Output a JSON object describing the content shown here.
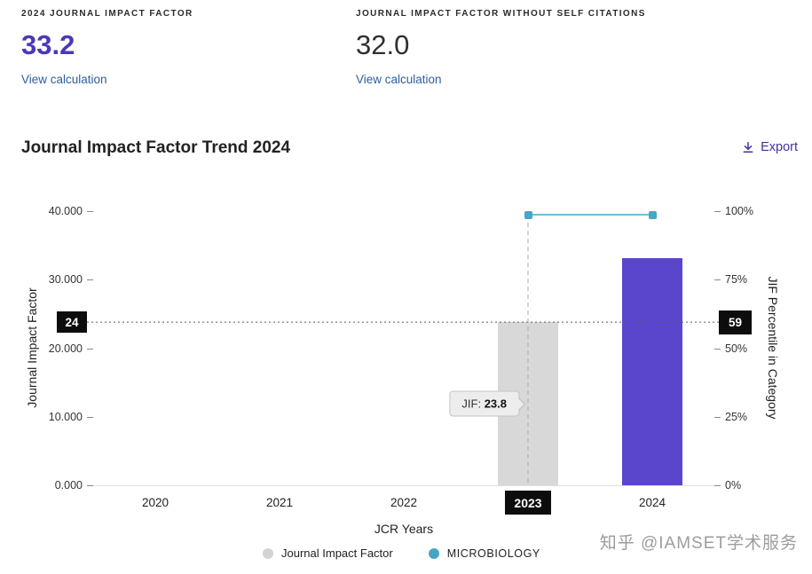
{
  "metrics": {
    "jif": {
      "label": "2024 JOURNAL IMPACT FACTOR",
      "value": "33.2",
      "link": "View calculation"
    },
    "jif_without_self": {
      "label": "JOURNAL IMPACT FACTOR WITHOUT SELF CITATIONS",
      "value": "32.0",
      "link": "View calculation"
    }
  },
  "trend": {
    "title": "Journal Impact Factor Trend 2024",
    "export_label": "Export"
  },
  "chart_data": {
    "type": "bar",
    "title": "Journal Impact Factor Trend 2024",
    "xlabel": "JCR Years",
    "ylabel_left": "Journal Impact Factor",
    "ylabel_right": "JIF Percentile in Category",
    "categories": [
      "2020",
      "2021",
      "2022",
      "2023",
      "2024"
    ],
    "ylim_left": [
      0,
      40
    ],
    "ylim_right": [
      0,
      100
    ],
    "y_left_ticks": [
      "40.000",
      "30.000",
      "20.000",
      "10.000",
      "0.000"
    ],
    "y_right_ticks": [
      "100%",
      "75%",
      "50%",
      "25%",
      "0%"
    ],
    "grid": false,
    "legend_position": "bottom",
    "series": [
      {
        "name": "Journal Impact Factor",
        "type": "bar",
        "axis": "left",
        "values": [
          null,
          null,
          null,
          23.8,
          33.2
        ],
        "colors": [
          null,
          null,
          null,
          "#d8d8d8",
          "#5a45cd"
        ]
      },
      {
        "name": "MICROBIOLOGY",
        "type": "line",
        "axis": "right",
        "values": [
          null,
          null,
          null,
          98.7,
          98.7
        ],
        "color": "#49a5c6"
      }
    ],
    "annotations": {
      "highlighted_year": "2023",
      "crosshair_jif_value": 23.8,
      "left_axis_marker": "24",
      "right_axis_marker": "59",
      "tooltip_label": "JIF: ",
      "tooltip_value": "23.8"
    },
    "legend": [
      {
        "label": "Journal Impact Factor",
        "color": "#d3d3d3",
        "upper": false
      },
      {
        "label": "MICROBIOLOGY",
        "color": "#49a5c6",
        "upper": true
      }
    ]
  },
  "watermark": "知乎 @IAMSET学术服务"
}
